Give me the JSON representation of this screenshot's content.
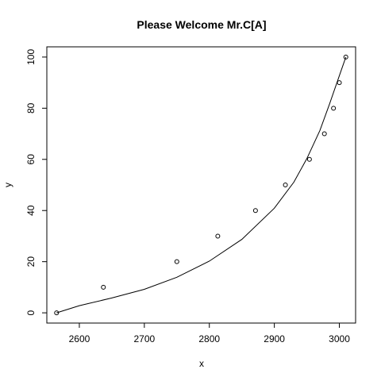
{
  "chart_data": {
    "type": "scatter",
    "title": "Please Welcome Mr.C[A]",
    "xlabel": "x",
    "ylabel": "y",
    "xlim": [
      2550,
      3025
    ],
    "ylim": [
      -4,
      104
    ],
    "x_ticks": [
      2600,
      2700,
      2800,
      2900,
      3000
    ],
    "y_ticks": [
      0,
      20,
      40,
      60,
      80,
      100
    ],
    "grid": false,
    "points": [
      {
        "x": 2565,
        "y": 0
      },
      {
        "x": 2637,
        "y": 10
      },
      {
        "x": 2750,
        "y": 20
      },
      {
        "x": 2813,
        "y": 30
      },
      {
        "x": 2871,
        "y": 40
      },
      {
        "x": 2917,
        "y": 50
      },
      {
        "x": 2954,
        "y": 60
      },
      {
        "x": 2977,
        "y": 70
      },
      {
        "x": 2991,
        "y": 80
      },
      {
        "x": 3000,
        "y": 90
      },
      {
        "x": 3010,
        "y": 100
      }
    ],
    "fit_curve": [
      {
        "x": 2565,
        "y": 0
      },
      {
        "x": 2600,
        "y": 2.8
      },
      {
        "x": 2650,
        "y": 5.8
      },
      {
        "x": 2700,
        "y": 9.2
      },
      {
        "x": 2750,
        "y": 13.9
      },
      {
        "x": 2800,
        "y": 20.2
      },
      {
        "x": 2850,
        "y": 28.7
      },
      {
        "x": 2900,
        "y": 40.9
      },
      {
        "x": 2930,
        "y": 51.1
      },
      {
        "x": 2950,
        "y": 60.3
      },
      {
        "x": 2970,
        "y": 71.3
      },
      {
        "x": 2985,
        "y": 81.7
      },
      {
        "x": 3000,
        "y": 92.7
      },
      {
        "x": 3010,
        "y": 100
      }
    ]
  }
}
